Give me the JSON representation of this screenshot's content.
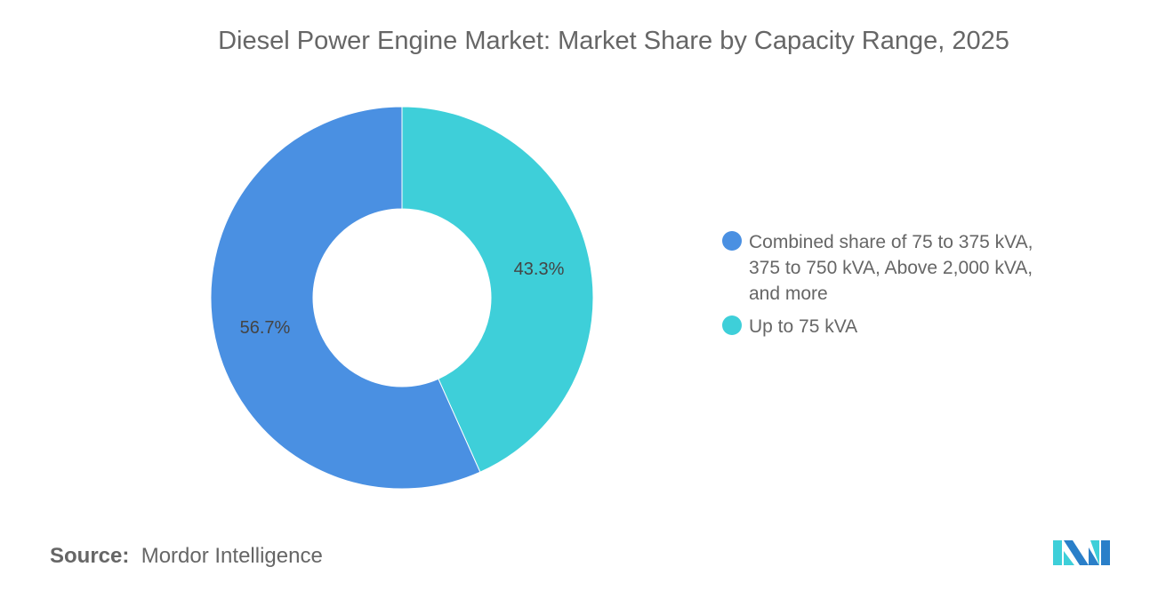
{
  "chart_data": {
    "type": "pie",
    "donut": true,
    "title": "Diesel Power Engine Market: Market Share by Capacity Range, 2025",
    "slices": [
      {
        "label": "Up to 75 kVA",
        "value": 43.3,
        "display": "43.3%",
        "color": "#3ecfd9"
      },
      {
        "label": "Combined share of 75 to 375 kVA, 375 to 750 kVA, Above 2,000 kVA, and more",
        "value": 56.7,
        "display": "56.7%",
        "color": "#4a90e2"
      }
    ],
    "legend": {
      "placement": "right",
      "items": [
        {
          "label": "Combined share of 75 to 375 kVA, 375 to 750 kVA, Above 2,000 kVA, and more",
          "color": "#4a90e2"
        },
        {
          "label": "Up to 75 kVA",
          "color": "#3ecfd9"
        }
      ]
    }
  },
  "source": {
    "label": "Source:",
    "value": "Mordor Intelligence"
  },
  "logo": {
    "text": "Mordor Intelligence"
  }
}
